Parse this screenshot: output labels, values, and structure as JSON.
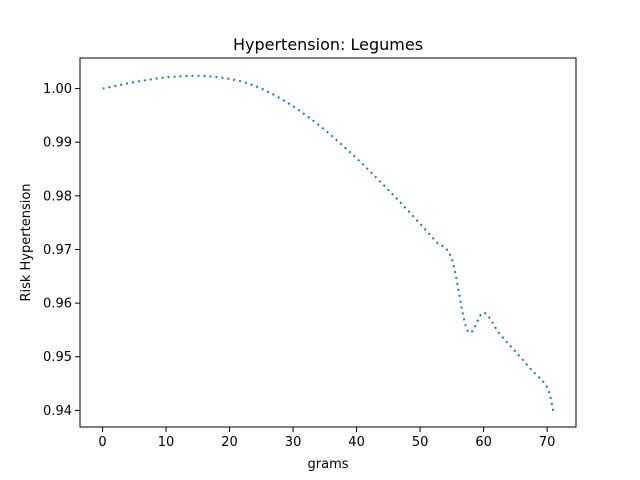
{
  "chart_data": {
    "type": "line",
    "title": "Hypertension: Legumes",
    "xlabel": "grams",
    "ylabel": "Risk Hypertension",
    "xlim": [
      -3.55,
      74.55
    ],
    "ylim": [
      0.9369,
      1.0057
    ],
    "xticks": [
      0,
      10,
      20,
      30,
      40,
      50,
      60,
      70
    ],
    "yticks": [
      0.94,
      0.95,
      0.96,
      0.97,
      0.98,
      0.99,
      1.0
    ],
    "ytick_labels": [
      "0.94",
      "0.95",
      "0.96",
      "0.97",
      "0.98",
      "0.99",
      "1.00"
    ],
    "line_style": "dotted",
    "grid": false,
    "colors": {
      "series": "#1f77b4"
    },
    "series": [
      {
        "x": [
          0,
          2.5,
          5,
          7.5,
          10,
          12.5,
          15,
          17.5,
          20,
          22.5,
          25,
          27.5,
          30,
          32.5,
          35,
          37.5,
          40,
          42.5,
          45,
          47.5,
          50,
          52.5,
          55,
          57.5,
          60,
          62.5,
          65,
          67.5,
          70,
          71
        ],
        "y": [
          1.0,
          1.0006,
          1.0012,
          1.0017,
          1.0021,
          1.0023,
          1.0024,
          1.0022,
          1.0018,
          1.0011,
          1.0,
          0.9985,
          0.9967,
          0.9946,
          0.9923,
          0.9897,
          0.987,
          0.9841,
          0.9811,
          0.978,
          0.9748,
          0.9715,
          0.9682,
          0.9548,
          0.9582,
          0.9543,
          0.951,
          0.9476,
          0.9443,
          0.9397
        ]
      }
    ]
  }
}
